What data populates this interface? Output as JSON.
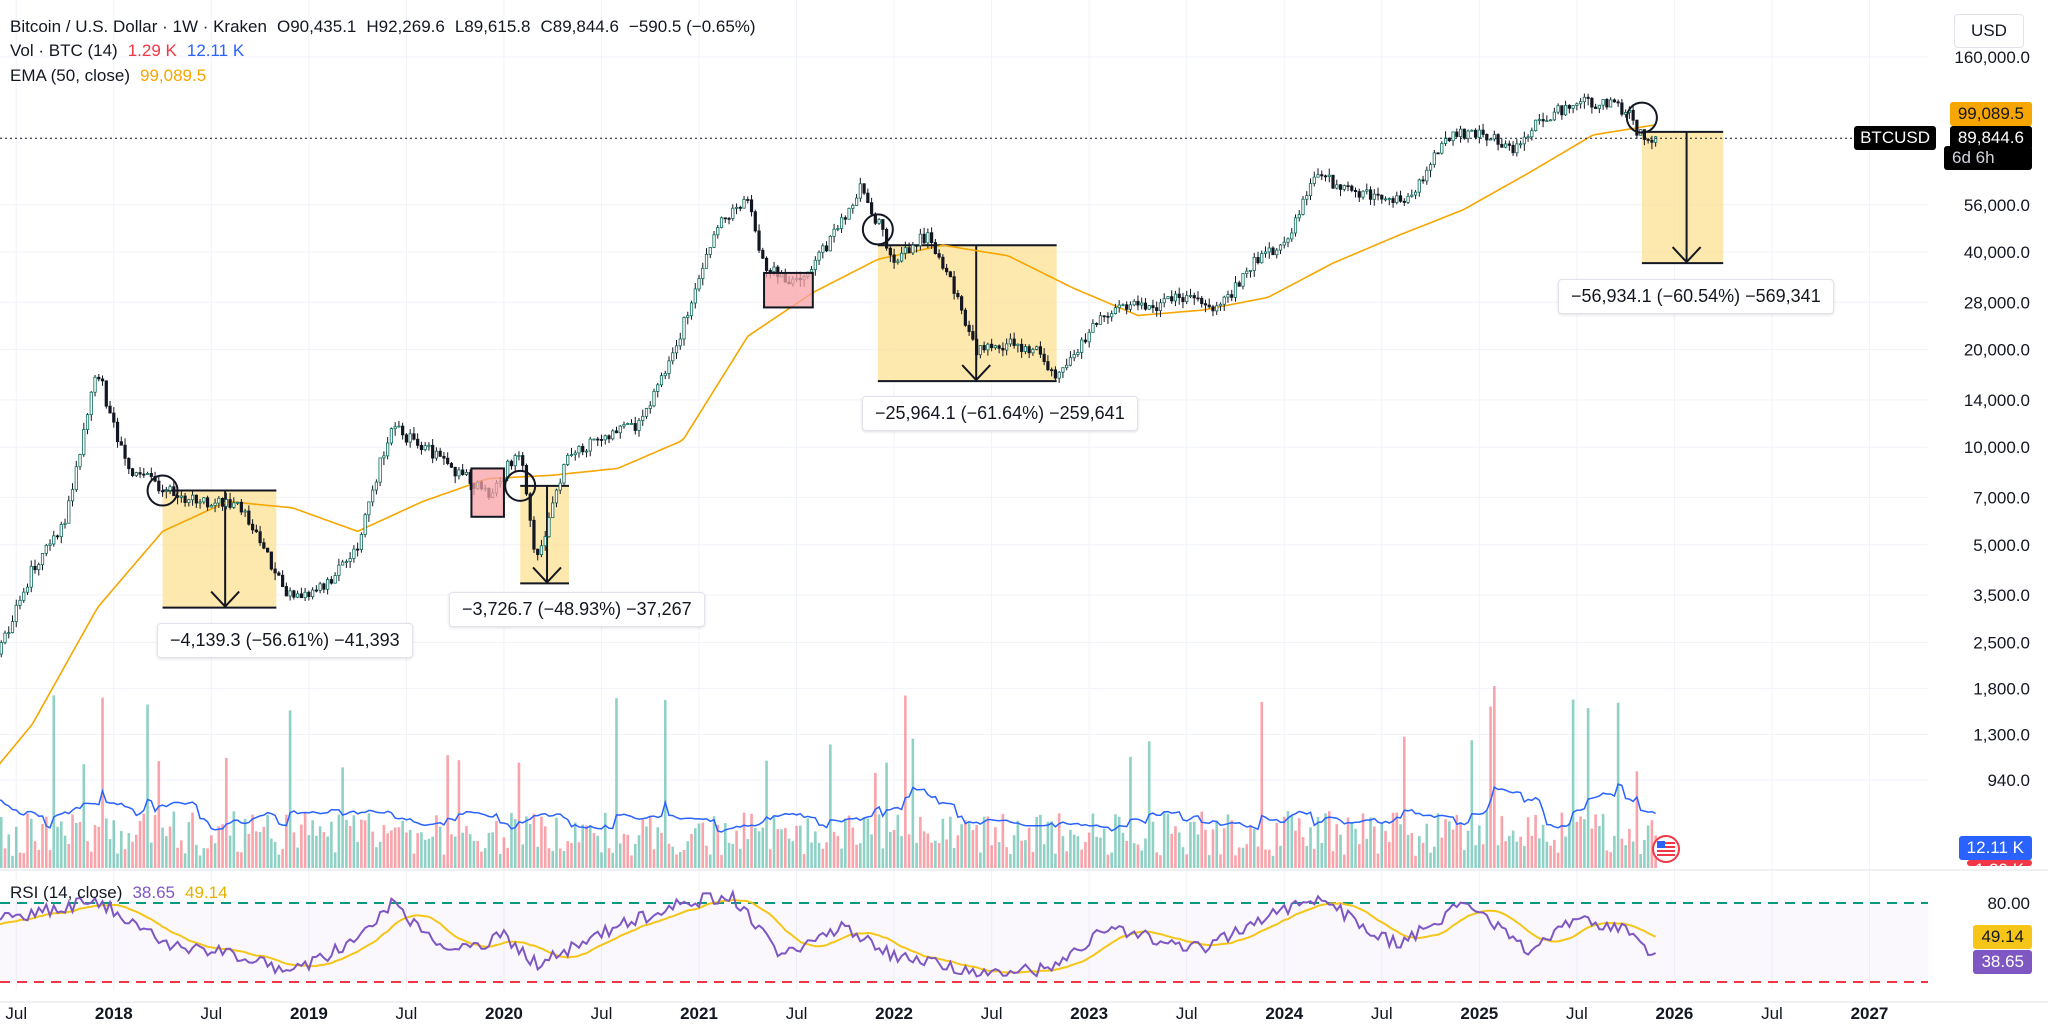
{
  "legend": {
    "symbol": "Bitcoin / U.S. Dollar · 1W · Kraken",
    "open": "O90,435.1",
    "high": "H92,269.6",
    "low": "L89,615.8",
    "close": "C89,844.6",
    "change": "−590.5 (−0.65%)",
    "vol_label": "Vol · BTC (14)",
    "vol_value1": "1.29 K",
    "vol_value2": "12.11 K",
    "ema_label": "EMA (50, close)",
    "ema_value": "99,089.5"
  },
  "currency": "USD",
  "price_labels": {
    "ema": "99,089.5",
    "ticker": "BTCUSD",
    "last": "89,844.6",
    "countdown": "6d 6h",
    "vol_ma": "12.11 K",
    "vol_cur": "1.29 K"
  },
  "rsi": {
    "label": "RSI (14, close)",
    "value": "38.65",
    "ma_value": "49.14",
    "upper_tick": "80.00"
  },
  "annotations": [
    "−4,139.3 (−56.61%) −41,393",
    "−3,726.7 (−48.93%) −37,267",
    "−25,964.1 (−61.64%) −259,641",
    "−56,934.1 (−60.54%) −569,341"
  ],
  "colors": {
    "up": "#089981",
    "down": "#f23645",
    "ema": "#f7a600",
    "vol_ma": "#2962ff",
    "rsi": "#7e57c2",
    "rsi_ma": "#f5c518",
    "drawdown_fill": "#fde29a",
    "top_box_fill": "#f7a1a7"
  },
  "chart_data": {
    "type": "line",
    "log_scale": true,
    "y_ticks": [
      940,
      1300,
      1800,
      2500,
      3500,
      5000,
      7000,
      10000,
      14000,
      20000,
      28000,
      40000,
      56000,
      160000
    ],
    "y_tick_labels": [
      "940.0",
      "1,300.0",
      "1,800.0",
      "2,500.0",
      "3,500.0",
      "5,000.0",
      "7,000.0",
      "10,000.0",
      "14,000.0",
      "20,000.0",
      "28,000.0",
      "40,000.0",
      "56,000.0",
      "160,000.0"
    ],
    "x_ticks": [
      "2017-07",
      "2018-01",
      "2018-07",
      "2019-01",
      "2019-07",
      "2020-01",
      "2020-07",
      "2021-01",
      "2021-07",
      "2022-01",
      "2022-07",
      "2023-01",
      "2023-07",
      "2024-01",
      "2024-07",
      "2025-01",
      "2025-07",
      "2026-01",
      "2026-07",
      "2027-01"
    ],
    "x_tick_labels": [
      "Jul",
      "2018",
      "Jul",
      "2019",
      "Jul",
      "2020",
      "Jul",
      "2021",
      "Jul",
      "2022",
      "Jul",
      "2023",
      "Jul",
      "2024",
      "Jul",
      "2025",
      "Jul",
      "2026",
      "Jul",
      "2027"
    ],
    "series": [
      {
        "x": [
          "2017-04",
          "2017-06",
          "2017-08",
          "2017-10",
          "2017-12",
          "2018-01",
          "2018-02",
          "2018-04",
          "2018-05",
          "2018-07",
          "2018-09",
          "2018-11",
          "2018-12",
          "2019-02",
          "2019-04",
          "2019-06",
          "2019-08",
          "2019-10",
          "2019-12",
          "2020-02",
          "2020-03",
          "2020-05",
          "2020-07",
          "2020-09",
          "2020-11",
          "2021-01",
          "2021-02",
          "2021-04",
          "2021-05",
          "2021-07",
          "2021-09",
          "2021-11",
          "2022-01",
          "2022-03",
          "2022-05",
          "2022-06",
          "2022-08",
          "2022-10",
          "2022-11",
          "2023-01",
          "2023-03",
          "2023-05",
          "2023-07",
          "2023-09",
          "2023-11",
          "2024-01",
          "2024-03",
          "2024-05",
          "2024-07",
          "2024-09",
          "2024-11",
          "2025-01",
          "2025-03",
          "2025-05",
          "2025-07",
          "2025-09",
          "2025-10",
          "2025-11",
          "2025-12"
        ],
        "values": [
          1100,
          2400,
          4200,
          5800,
          17500,
          11500,
          8500,
          7500,
          7000,
          6800,
          6500,
          4000,
          3400,
          3700,
          5000,
          11500,
          10200,
          8500,
          7200,
          9800,
          4500,
          9500,
          10800,
          11500,
          17000,
          33000,
          47000,
          58000,
          36000,
          32000,
          43000,
          64000,
          38000,
          45000,
          29000,
          19500,
          21000,
          19500,
          16000,
          23000,
          27500,
          27000,
          29500,
          26500,
          37000,
          42000,
          69000,
          62000,
          58000,
          60000,
          91000,
          94000,
          84000,
          104000,
          117000,
          114000,
          110000,
          90000,
          89844.6
        ]
      },
      {
        "x": [
          "2017-04",
          "2017-08",
          "2017-12",
          "2018-04",
          "2018-08",
          "2018-12",
          "2019-04",
          "2019-08",
          "2019-12",
          "2020-04",
          "2020-08",
          "2020-12",
          "2021-04",
          "2021-08",
          "2021-12",
          "2022-04",
          "2022-08",
          "2022-12",
          "2023-04",
          "2023-08",
          "2023-12",
          "2024-04",
          "2024-08",
          "2024-12",
          "2025-04",
          "2025-08",
          "2025-12"
        ],
        "values": [
          800,
          1400,
          3200,
          5500,
          6800,
          6500,
          5500,
          6800,
          8000,
          8200,
          8600,
          10500,
          22000,
          30000,
          38000,
          42000,
          39000,
          31000,
          25500,
          26500,
          29000,
          37000,
          45000,
          54000,
          70000,
          92000,
          99089.5
        ]
      }
    ],
    "series_names": [
      "BTCUSD",
      "EMA (50, close)"
    ],
    "rsi_ticks": [
      80
    ],
    "rsi": {
      "x": [
        "2017-04",
        "2017-08",
        "2017-12",
        "2018-04",
        "2018-08",
        "2018-12",
        "2019-04",
        "2019-06",
        "2019-10",
        "2020-01",
        "2020-03",
        "2020-08",
        "2020-12",
        "2021-03",
        "2021-06",
        "2021-10",
        "2022-01",
        "2022-06",
        "2022-11",
        "2023-02",
        "2023-08",
        "2023-12",
        "2024-03",
        "2024-08",
        "2024-12",
        "2025-04",
        "2025-07",
        "2025-10",
        "2025-12"
      ],
      "values": [
        62,
        72,
        82,
        50,
        42,
        28,
        52,
        79,
        42,
        55,
        34,
        62,
        80,
        86,
        40,
        62,
        40,
        27,
        30,
        62,
        45,
        70,
        84,
        48,
        79,
        45,
        67,
        60,
        38.65
      ]
    },
    "drawdowns": [
      {
        "from": "2018-04",
        "to": "2018-11",
        "high": 7350,
        "low": 3200
      },
      {
        "from": "2020-02",
        "to": "2020-05",
        "high": 7600,
        "low": 3800
      },
      {
        "from": "2021-12",
        "to": "2022-11",
        "high": 42000,
        "low": 16000
      },
      {
        "from": "2025-11",
        "to": "2026-04",
        "high": 94000,
        "low": 37000
      }
    ]
  }
}
